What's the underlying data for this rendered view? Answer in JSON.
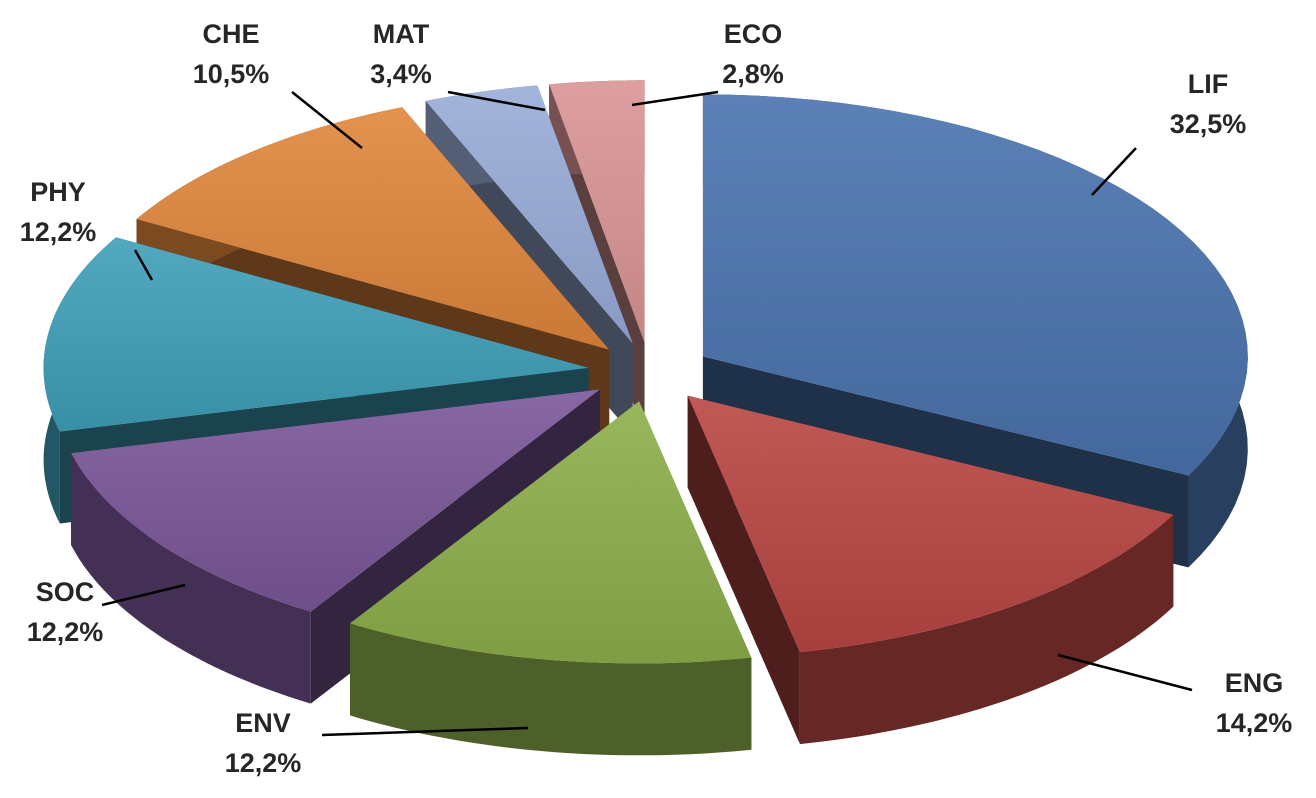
{
  "chart_data": {
    "type": "pie",
    "style": "3d-exploded",
    "title": "",
    "slices": [
      {
        "label": "LIF",
        "value": 32.5,
        "value_label": "32,5%",
        "color": "#4a73ae"
      },
      {
        "label": "ENG",
        "value": 14.2,
        "value_label": "14,2%",
        "color": "#b94743"
      },
      {
        "label": "ENV",
        "value": 12.2,
        "value_label": "12,2%",
        "color": "#8daf4b"
      },
      {
        "label": "SOC",
        "value": 12.2,
        "value_label": "12,2%",
        "color": "#7a5799"
      },
      {
        "label": "PHY",
        "value": 12.2,
        "value_label": "12,2%",
        "color": "#3e9fb9"
      },
      {
        "label": "CHE",
        "value": 10.5,
        "value_label": "10,5%",
        "color": "#e0863c"
      },
      {
        "label": "MAT",
        "value": 3.4,
        "value_label": "3,4%",
        "color": "#98acd7"
      },
      {
        "label": "ECO",
        "value": 2.8,
        "value_label": "2,8%",
        "color": "#d99494"
      }
    ]
  }
}
